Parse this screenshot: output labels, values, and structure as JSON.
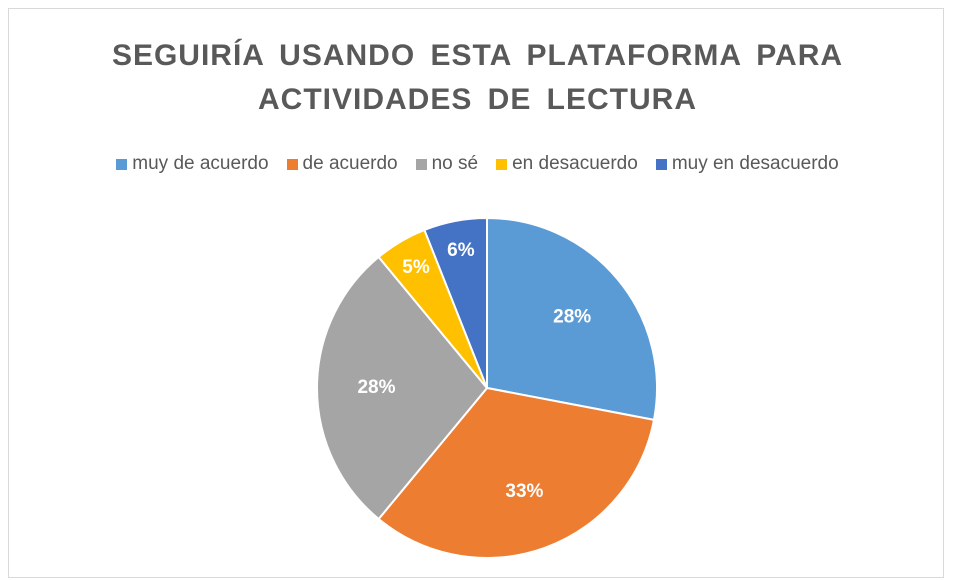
{
  "chart_data": {
    "type": "pie",
    "title": "SEGUIRÍA USANDO ESTA PLATAFORMA PARA ACTIVIDADES DE LECTURA",
    "categories": [
      "muy de acuerdo",
      "de acuerdo",
      "no sé",
      "en desacuerdo",
      "muy en desacuerdo"
    ],
    "values": [
      28,
      33,
      28,
      5,
      6
    ],
    "value_labels": [
      "28%",
      "33%",
      "28%",
      "5%",
      "6%"
    ],
    "colors": [
      "#5b9bd5",
      "#ed7d31",
      "#a5a5a5",
      "#ffc000",
      "#4472c4"
    ],
    "legend": "top"
  }
}
